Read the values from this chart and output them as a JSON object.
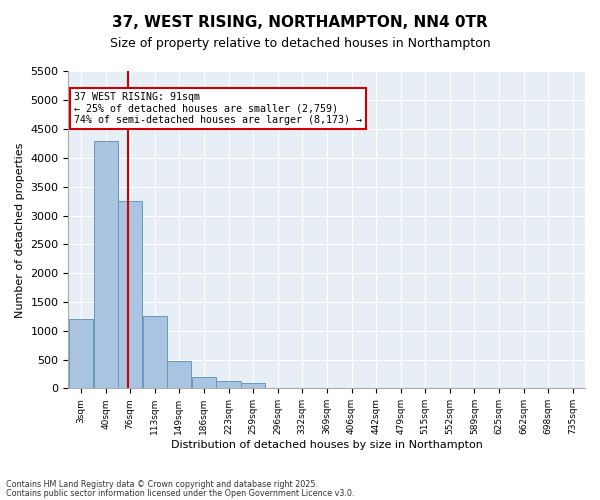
{
  "title": "37, WEST RISING, NORTHAMPTON, NN4 0TR",
  "subtitle": "Size of property relative to detached houses in Northampton",
  "xlabel": "Distribution of detached houses by size in Northampton",
  "ylabel": "Number of detached properties",
  "footnote1": "Contains HM Land Registry data © Crown copyright and database right 2025.",
  "footnote2": "Contains public sector information licensed under the Open Government Licence v3.0.",
  "annotation_title": "37 WEST RISING: 91sqm",
  "annotation_line1": "← 25% of detached houses are smaller (2,759)",
  "annotation_line2": "74% of semi-detached houses are larger (8,173) →",
  "property_size": 91,
  "bar_color": "#a8c4e0",
  "bar_edge_color": "#6699bb",
  "vline_color": "#cc0000",
  "annotation_box_color": "#cc0000",
  "background_color": "#e8eef5",
  "bin_edges": [
    3,
    40,
    76,
    113,
    149,
    186,
    223,
    259,
    296,
    332,
    369,
    406,
    442,
    479,
    515,
    552,
    589,
    625,
    662,
    698,
    735
  ],
  "tick_labels": [
    "3sqm",
    "40sqm",
    "76sqm",
    "113sqm",
    "149sqm",
    "186sqm",
    "223sqm",
    "259sqm",
    "296sqm",
    "332sqm",
    "369sqm",
    "406sqm",
    "442sqm",
    "479sqm",
    "515sqm",
    "552sqm",
    "589sqm",
    "625sqm",
    "662sqm",
    "698sqm",
    "735sqm"
  ],
  "values": [
    1200,
    4300,
    3250,
    1250,
    480,
    200,
    120,
    100,
    0,
    0,
    0,
    0,
    0,
    0,
    0,
    0,
    0,
    0,
    0,
    0
  ],
  "ylim": [
    0,
    5500
  ],
  "yticks": [
    0,
    500,
    1000,
    1500,
    2000,
    2500,
    3000,
    3500,
    4000,
    4500,
    5000,
    5500
  ]
}
